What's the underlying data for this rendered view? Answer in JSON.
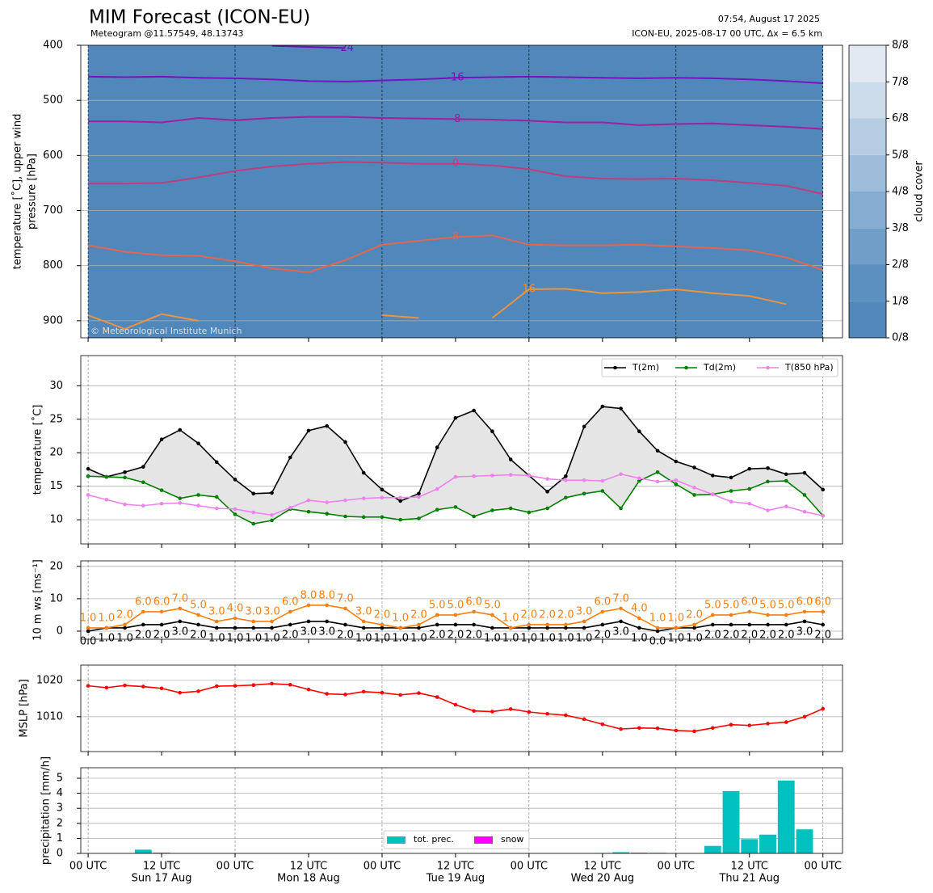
{
  "chart_data": [
    {
      "type": "contour",
      "title": "MIM Forecast (ICON-EU)",
      "subtitle": "Meteogram @11.57549, 48.13743",
      "run_time": "07:54, August 17 2025",
      "run_info": "ICON-EU, 2025-08-17 00 UTC, Δx = 6.5 km",
      "credit": "© Meteorological Institute Munich",
      "ylabel": [
        "temperature [˚C], upper wind",
        "pressure [hPa]"
      ],
      "xlim": [
        -1.2,
        123.2
      ],
      "ylim": [
        400,
        931
      ],
      "y_inverted": true,
      "yticks": [
        400,
        500,
        600,
        700,
        800,
        900
      ],
      "grid": true,
      "x": [
        0,
        6,
        12,
        18,
        24,
        30,
        36,
        42,
        48,
        54,
        60,
        66,
        72,
        78,
        84,
        90,
        96,
        102,
        108,
        114,
        120
      ],
      "isotherms": [
        {
          "name": "-24",
          "color": "#6a0fb0",
          "values": [
            null,
            null,
            null,
            null,
            null,
            401,
            403,
            405,
            null,
            null,
            null,
            null,
            null,
            null,
            null,
            null,
            null,
            null,
            null,
            null,
            401
          ]
        },
        {
          "name": "-16",
          "color": "#7a12c0",
          "values": [
            457,
            458,
            457,
            459,
            460,
            462,
            465,
            466,
            464,
            462,
            459,
            458,
            457,
            458,
            459,
            460,
            459,
            460,
            462,
            465,
            469
          ]
        },
        {
          "name": "-8",
          "color": "#a0209e",
          "values": [
            538,
            538,
            540,
            532,
            536,
            532,
            530,
            530,
            532,
            533,
            534,
            535,
            537,
            540,
            540,
            545,
            543,
            542,
            545,
            548,
            552
          ]
        },
        {
          "name": "0",
          "color": "#c23c7c",
          "values": [
            651,
            651,
            650,
            640,
            628,
            620,
            615,
            612,
            613,
            615,
            615,
            618,
            625,
            638,
            642,
            643,
            642,
            645,
            650,
            655,
            670
          ]
        },
        {
          "name": "8",
          "color": "#e3654f",
          "values": [
            763,
            775,
            781,
            782,
            792,
            805,
            812,
            790,
            762,
            755,
            748,
            745,
            762,
            763,
            763,
            762,
            765,
            768,
            772,
            785,
            808
          ]
        },
        {
          "name": "16",
          "color": "#f0923b",
          "values": [
            890,
            915,
            888,
            900,
            null,
            null,
            null,
            null,
            890,
            895,
            null,
            895,
            843,
            842,
            850,
            848,
            843,
            850,
            855,
            870,
            null
          ]
        }
      ],
      "colorbar": {
        "label": "cloud cover",
        "ticks": [
          {
            "value": 0,
            "label": "0/8"
          },
          {
            "value": 1,
            "label": "1/8"
          },
          {
            "value": 2,
            "label": "2/8"
          },
          {
            "value": 3,
            "label": "3/8"
          },
          {
            "value": 4,
            "label": "4/8"
          },
          {
            "value": 5,
            "label": "5/8"
          },
          {
            "value": 6,
            "label": "6/8"
          },
          {
            "value": 7,
            "label": "7/8"
          },
          {
            "value": 8,
            "label": "8/8"
          }
        ],
        "colors": [
          "#5088bb",
          "#5b90c0",
          "#709ec8",
          "#86add1",
          "#9ebdda",
          "#b5cde3",
          "#ccdcea",
          "#e1eaf3",
          "#f3f7fb"
        ]
      }
    },
    {
      "type": "line",
      "ylabel": "temperature [˚C]",
      "xlim": [
        -1.2,
        123.2
      ],
      "ylim": [
        6.4,
        34.5
      ],
      "yticks": [
        10,
        15,
        20,
        25,
        30
      ],
      "grid": true,
      "legend": "upper right",
      "fill_between": true,
      "x": [
        0,
        3,
        6,
        9,
        12,
        15,
        18,
        21,
        24,
        27,
        30,
        33,
        36,
        39,
        42,
        45,
        48,
        51,
        54,
        57,
        60,
        63,
        66,
        69,
        72,
        75,
        78,
        81,
        84,
        87,
        90,
        93,
        96,
        99,
        102,
        105,
        108,
        111,
        114,
        117,
        120
      ],
      "series": [
        {
          "name": "T(2m)",
          "color": "#000000",
          "values": [
            17.6,
            16.4,
            17.1,
            17.9,
            22.0,
            23.4,
            21.4,
            18.6,
            16.0,
            13.9,
            14.0,
            19.3,
            23.3,
            24.0,
            21.6,
            17.0,
            14.5,
            12.8,
            13.9,
            20.8,
            25.2,
            26.3,
            23.2,
            19.0,
            16.6,
            14.2,
            16.5,
            23.9,
            26.9,
            26.6,
            23.2,
            20.3,
            18.7,
            17.8,
            16.6,
            16.3,
            17.6,
            17.7,
            16.8,
            17.0,
            14.5
          ]
        },
        {
          "name": "Td(2m)",
          "color": "#008000",
          "values": [
            16.5,
            16.4,
            16.3,
            15.6,
            14.4,
            13.2,
            13.7,
            13.4,
            10.8,
            9.4,
            9.9,
            11.6,
            11.2,
            10.9,
            10.5,
            10.4,
            10.4,
            10.0,
            10.2,
            11.5,
            11.9,
            10.5,
            11.4,
            11.7,
            11.1,
            11.7,
            13.3,
            13.9,
            14.3,
            11.7,
            15.8,
            17.1,
            15.3,
            13.7,
            13.8,
            14.3,
            14.6,
            15.7,
            15.8,
            13.7,
            10.6
          ]
        },
        {
          "name": "T(850 hPa)",
          "color": "#ee82ee",
          "values": [
            13.7,
            13.0,
            12.3,
            12.1,
            12.4,
            12.5,
            12.1,
            11.7,
            11.6,
            11.1,
            10.7,
            11.8,
            12.9,
            12.6,
            12.9,
            13.2,
            13.3,
            13.3,
            13.4,
            14.6,
            16.4,
            16.5,
            16.6,
            16.7,
            16.6,
            16.1,
            15.9,
            15.9,
            15.8,
            16.8,
            16.2,
            15.7,
            15.9,
            14.8,
            13.8,
            12.7,
            12.4,
            11.4,
            12.0,
            11.2,
            10.6
          ]
        }
      ]
    },
    {
      "type": "line",
      "ylabel": "10 m ws [ms⁻¹]",
      "xlim": [
        -1.2,
        123.2
      ],
      "ylim": [
        -2.5,
        21.7
      ],
      "yticks": [
        0,
        10,
        20
      ],
      "grid": true,
      "x": [
        0,
        3,
        6,
        9,
        12,
        15,
        18,
        21,
        24,
        27,
        30,
        33,
        36,
        39,
        42,
        45,
        48,
        51,
        54,
        57,
        60,
        63,
        66,
        69,
        72,
        75,
        78,
        81,
        84,
        87,
        90,
        93,
        96,
        99,
        102,
        105,
        108,
        111,
        114,
        117,
        120
      ],
      "series": [
        {
          "color": "#000000",
          "label_side": "below",
          "values": [
            0,
            1,
            1,
            2,
            2,
            3,
            2,
            1,
            1,
            1,
            1,
            2,
            3,
            3,
            2,
            1,
            1,
            1,
            1,
            2,
            2,
            2,
            1,
            1,
            1,
            1,
            1,
            1,
            2,
            3,
            1,
            0,
            1,
            1,
            2,
            2,
            2,
            2,
            2,
            3,
            2
          ],
          "value_labels": [
            "0.0",
            "1.0",
            "1.0",
            "2.0",
            "2.0",
            "3.0",
            "2.0",
            "1.0",
            "1.0",
            "1.0",
            "1.0",
            "2.0",
            "3.0",
            "3.0",
            "2.0",
            "1.0",
            "1.0",
            "1.0",
            "1.0",
            "2.0",
            "2.0",
            "2.0",
            "1.0",
            "1.0",
            "1.0",
            "1.0",
            "1.0",
            "1.0",
            "2.0",
            "3.0",
            "1.0",
            "0.0",
            "1.0",
            "1.0",
            "2.0",
            "2.0",
            "2.0",
            "2.0",
            "2.0",
            "3.0",
            "2.0"
          ]
        },
        {
          "color": "#ff7f0e",
          "label_side": "above",
          "values": [
            1,
            1,
            2,
            6,
            6,
            7,
            5,
            3,
            4,
            3,
            3,
            6,
            8,
            8,
            7,
            3,
            2,
            1,
            2,
            5,
            5,
            6,
            5,
            1,
            2,
            2,
            2,
            3,
            6,
            7,
            4,
            1,
            1,
            2,
            5,
            5,
            6,
            5,
            5,
            6,
            6
          ],
          "value_labels": [
            "1.0",
            "1.0",
            "2.0",
            "6.0",
            "6.0",
            "7.0",
            "5.0",
            "3.0",
            "4.0",
            "3.0",
            "3.0",
            "6.0",
            "8.0",
            "8.0",
            "7.0",
            "3.0",
            "2.0",
            "1.0",
            "2.0",
            "5.0",
            "5.0",
            "6.0",
            "5.0",
            "1.0",
            "2.0",
            "2.0",
            "2.0",
            "3.0",
            "6.0",
            "7.0",
            "4.0",
            "1.0",
            "1.0",
            "2.0",
            "5.0",
            "5.0",
            "6.0",
            "5.0",
            "5.0",
            "6.0",
            "6.0"
          ]
        }
      ]
    },
    {
      "type": "line",
      "ylabel": "MSLP [hPa]",
      "xlim": [
        -1.2,
        123.2
      ],
      "ylim": [
        1000.4,
        1024.2
      ],
      "yticks": [
        1010,
        1020
      ],
      "grid": true,
      "x": [
        0,
        3,
        6,
        9,
        12,
        15,
        18,
        21,
        24,
        27,
        30,
        33,
        36,
        39,
        42,
        45,
        48,
        51,
        54,
        57,
        60,
        63,
        66,
        69,
        72,
        75,
        78,
        81,
        84,
        87,
        90,
        93,
        96,
        99,
        102,
        105,
        108,
        111,
        114,
        117,
        120
      ],
      "series": [
        {
          "color": "#ff0000",
          "values": [
            1018.5,
            1018.0,
            1018.6,
            1018.3,
            1017.8,
            1016.6,
            1017.0,
            1018.4,
            1018.5,
            1018.7,
            1019.1,
            1018.8,
            1017.5,
            1016.3,
            1016.1,
            1016.9,
            1016.6,
            1016.0,
            1016.5,
            1015.4,
            1013.3,
            1011.6,
            1011.4,
            1012.1,
            1011.3,
            1010.8,
            1010.4,
            1009.3,
            1007.9,
            1006.6,
            1006.9,
            1006.8,
            1006.2,
            1006.0,
            1006.9,
            1007.8,
            1007.6,
            1008.1,
            1008.5,
            1010.0,
            1012.2
          ]
        }
      ]
    },
    {
      "type": "bar",
      "ylabel": "precipitation [mm/h]",
      "xlim": [
        -1.2,
        123.2
      ],
      "ylim": [
        0,
        5.7
      ],
      "yticks": [
        0,
        1,
        2,
        3,
        4,
        5
      ],
      "grid": true,
      "legend": "lower center",
      "x": [
        0,
        3,
        6,
        9,
        12,
        15,
        18,
        21,
        24,
        27,
        30,
        33,
        36,
        39,
        42,
        45,
        48,
        51,
        54,
        57,
        60,
        63,
        66,
        69,
        72,
        75,
        78,
        81,
        84,
        87,
        90,
        93,
        96,
        99,
        102,
        105,
        108,
        111,
        114,
        117,
        120
      ],
      "series": [
        {
          "name": "tot. prec.",
          "color": "#00c0c0",
          "values": [
            0,
            0,
            0,
            0.25,
            0.05,
            0,
            0,
            0,
            0,
            0,
            0,
            0,
            0,
            0,
            0,
            0,
            0,
            0,
            0,
            0,
            0,
            0,
            0,
            0,
            0,
            0,
            0,
            0,
            0.03,
            0.08,
            0.05,
            0.04,
            0,
            0,
            0.5,
            4.15,
            0.95,
            1.25,
            4.85,
            1.6,
            0
          ]
        },
        {
          "name": "snow",
          "color": "#ff00ff",
          "values": [
            0,
            0,
            0,
            0,
            0,
            0,
            0,
            0,
            0,
            0,
            0,
            0,
            0,
            0,
            0,
            0,
            0,
            0,
            0,
            0,
            0,
            0,
            0,
            0,
            0,
            0,
            0,
            0,
            0,
            0,
            0,
            0,
            0,
            0,
            0,
            0,
            0,
            0,
            0,
            0,
            0
          ]
        }
      ],
      "xticks": [
        {
          "value": 0,
          "label": "00 UTC"
        },
        {
          "value": 12,
          "label": "12 UTC"
        },
        {
          "value": 24,
          "label": "00 UTC"
        },
        {
          "value": 36,
          "label": "12 UTC"
        },
        {
          "value": 48,
          "label": "00 UTC"
        },
        {
          "value": 60,
          "label": "12 UTC"
        },
        {
          "value": 72,
          "label": "00 UTC"
        },
        {
          "value": 84,
          "label": "12 UTC"
        },
        {
          "value": 96,
          "label": "00 UTC"
        },
        {
          "value": 108,
          "label": "12 UTC"
        },
        {
          "value": 120,
          "label": "00 UTC"
        }
      ],
      "xtick_dates": [
        {
          "value": 12,
          "label": "Sun 17 Aug"
        },
        {
          "value": 36,
          "label": "Mon 18 Aug"
        },
        {
          "value": 60,
          "label": "Tue 19 Aug"
        },
        {
          "value": 84,
          "label": "Wed 20 Aug"
        },
        {
          "value": 108,
          "label": "Thu 21 Aug"
        }
      ]
    }
  ]
}
